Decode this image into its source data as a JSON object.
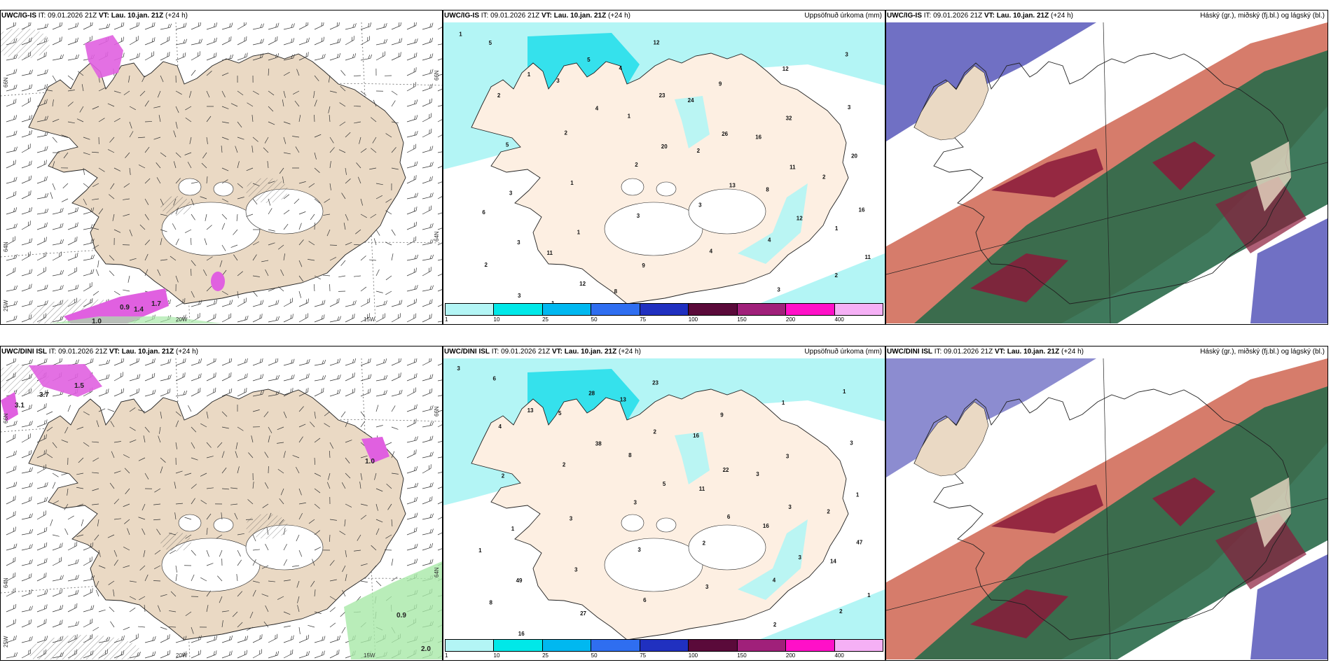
{
  "panels": [
    {
      "id": "p1",
      "title_model": "UWC/IG-IS",
      "it_label": "IT:",
      "it_value": "09.01.2026 21Z",
      "vt_label": "VT:",
      "vt_value": "Lau. 10.jan. 21Z",
      "lead": "(+24 h)",
      "right_title": "",
      "type": "wind",
      "contour_labels": [
        "0.9",
        "1.4",
        "1.7",
        "1.0"
      ],
      "lat_labels": [
        "66N",
        "64N",
        "25W"
      ],
      "lon_labels": [
        "20W",
        "15W"
      ],
      "lat_right": [
        "66N",
        "64N"
      ]
    },
    {
      "id": "p2",
      "title_model": "UWC/IG-IS",
      "it_label": "IT:",
      "it_value": "09.01.2026 21Z",
      "vt_label": "VT:",
      "vt_value": "Lau. 10.jan. 21Z",
      "lead": "(+24 h)",
      "right_title": "Uppsöfnuð úrkoma (mm)",
      "type": "precip",
      "values": [
        "1",
        "1",
        "4",
        "20",
        "13",
        "12",
        "11",
        "3",
        "5",
        "23",
        "26",
        "11",
        "16",
        "3",
        "12",
        "12",
        "9",
        "32",
        "20",
        "3",
        "1",
        "9",
        "16",
        "12",
        "3",
        "5",
        "1",
        "3",
        "4",
        "3",
        "3",
        "2",
        "2",
        "2",
        "3",
        "4",
        "2",
        "5",
        "3",
        "1",
        "2",
        "8",
        "1",
        "2",
        "1",
        "4",
        "24",
        "16",
        "2",
        "6",
        "11",
        "8"
      ]
    },
    {
      "id": "p3",
      "title_model": "UWC/IG-IS",
      "it_label": "IT:",
      "it_value": "09.01.2026 21Z",
      "vt_label": "VT:",
      "vt_value": "Lau. 10.jan. 21Z",
      "lead": "(+24 h)",
      "right_title": "Háský (gr.), miðský (fj.bl.) og lágský (bl.)",
      "type": "cloud"
    },
    {
      "id": "p4",
      "title_model": "UWC/DINI ISL",
      "it_label": "IT:",
      "it_value": "09.01.2026 21Z",
      "vt_label": "VT:",
      "vt_value": "Lau. 10.jan. 21Z",
      "lead": "(+24 h)",
      "right_title": "",
      "type": "wind",
      "contour_labels": [
        "3.7",
        "1.5",
        "3.1",
        "1.0",
        "0.9",
        "2.0"
      ],
      "lat_labels": [
        "66N",
        "64N",
        "25W"
      ],
      "lon_labels": [
        "20W",
        "15W"
      ],
      "lat_right": [
        "66N",
        "64N"
      ]
    },
    {
      "id": "p5",
      "title_model": "UWC/DINI ISL",
      "it_label": "IT:",
      "it_value": "09.01.2026 21Z",
      "vt_label": "VT:",
      "vt_value": "Lau. 10.jan. 21Z",
      "lead": "(+24 h)",
      "right_title": "Uppsöfnuð úrkoma (mm)",
      "type": "precip",
      "values": [
        "3",
        "13",
        "38",
        "5",
        "6",
        "3",
        "1",
        "16",
        "28",
        "2",
        "22",
        "3",
        "47",
        "49",
        "27",
        "23",
        "9",
        "3",
        "1",
        "1",
        "3",
        "6",
        "2",
        "1",
        "3",
        "2",
        "3",
        "3",
        "3",
        "2",
        "1",
        "4",
        "2",
        "3",
        "2",
        "4",
        "2",
        "6",
        "5",
        "8",
        "11",
        "16",
        "14",
        "8",
        "8",
        "13",
        "16",
        "3",
        "2",
        "1"
      ]
    },
    {
      "id": "p6",
      "title_model": "UWC/DINI ISL",
      "it_label": "IT:",
      "it_value": "09.01.2026 21Z",
      "vt_label": "VT:",
      "vt_value": "Lau. 10.jan. 21Z",
      "lead": "(+24 h)",
      "right_title": "Háský (gr.), miðský (fj.bl.) og lágský (bl.)",
      "type": "cloud"
    }
  ],
  "colorbar": {
    "colors": [
      "#b3f5f5",
      "#00e8e8",
      "#00b8f0",
      "#2f6ef0",
      "#2030c0",
      "#5a0a3a",
      "#a0207a",
      "#ff10c8",
      "#f5b0f5"
    ],
    "labels": [
      "1",
      "10",
      "25",
      "50",
      "75",
      "100",
      "150",
      "200",
      "400"
    ]
  },
  "colors": {
    "land": "#ead9c4",
    "land_precip": "#fdefe2",
    "cloud_high": "#2a6a4a",
    "cloud_mid": "#8a1a3a",
    "cloud_low": "#4040b0",
    "precip_light": "#b3f5f5",
    "precip_mid": "#00d8e8",
    "wind_pink": "#e060e0",
    "wind_green": "#a8e8a8"
  }
}
